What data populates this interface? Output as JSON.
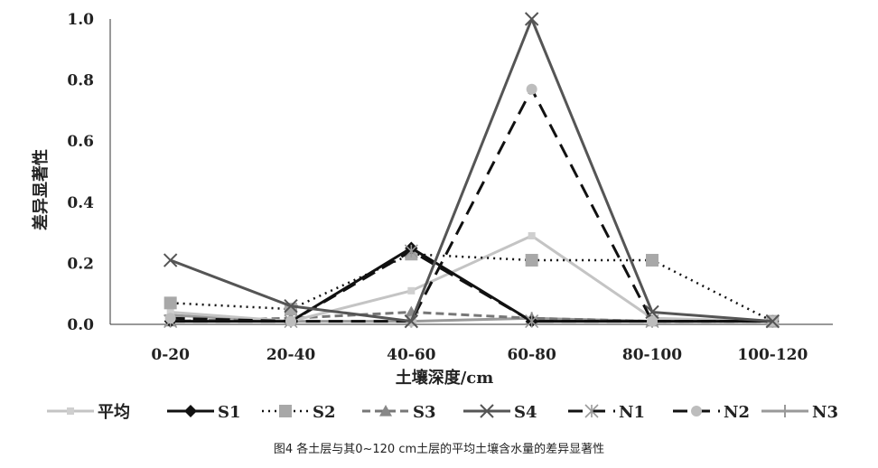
{
  "caption": "图4   各土层与其0~120 cm土层的平均土壤含水量的差异显著性",
  "chart_data": {
    "type": "line",
    "title": "",
    "xlabel": "土壤深度/cm",
    "ylabel": "差异显著性",
    "categories": [
      "0-20",
      "20-40",
      "40-60",
      "60-80",
      "80-100",
      "100-120"
    ],
    "ylim": [
      0,
      1.0
    ],
    "yticks": [
      "0.0",
      "0.2",
      "0.4",
      "0.6",
      "0.8",
      "1.0"
    ],
    "grid": false,
    "legend_position": "bottom",
    "series": [
      {
        "name": "平均",
        "values": [
          0.04,
          0.01,
          0.11,
          0.29,
          0.02,
          0.01
        ],
        "color": "#c4c4c4",
        "dash": "solid",
        "marker": "square-light"
      },
      {
        "name": "S1",
        "values": [
          0.01,
          0.01,
          0.25,
          0.01,
          0.01,
          0.01
        ],
        "color": "#111111",
        "dash": "solid",
        "marker": "diamond"
      },
      {
        "name": "S2",
        "values": [
          0.07,
          0.05,
          0.23,
          0.21,
          0.21,
          0.01
        ],
        "color": "#111111",
        "dash": "dotted",
        "marker": "square"
      },
      {
        "name": "S3",
        "values": [
          0.01,
          0.02,
          0.04,
          0.02,
          0.01,
          0.01
        ],
        "color": "#777777",
        "dash": "dashed",
        "marker": "triangle"
      },
      {
        "name": "S4",
        "values": [
          0.21,
          0.06,
          0.01,
          1.0,
          0.04,
          0.01
        ],
        "color": "#555555",
        "dash": "solid",
        "marker": "x"
      },
      {
        "name": "N1",
        "values": [
          0.01,
          0.01,
          0.24,
          0.01,
          0.01,
          0.01
        ],
        "color": "#111111",
        "dash": "longdash",
        "marker": "asterisk"
      },
      {
        "name": "N2",
        "values": [
          0.02,
          0.01,
          0.01,
          0.77,
          0.01,
          0.01
        ],
        "color": "#111111",
        "dash": "longdash",
        "marker": "circle"
      },
      {
        "name": "N3",
        "values": [
          0.03,
          0.01,
          0.01,
          0.02,
          0.01,
          0.01
        ],
        "color": "#999999",
        "dash": "solid",
        "marker": "plus"
      }
    ]
  }
}
